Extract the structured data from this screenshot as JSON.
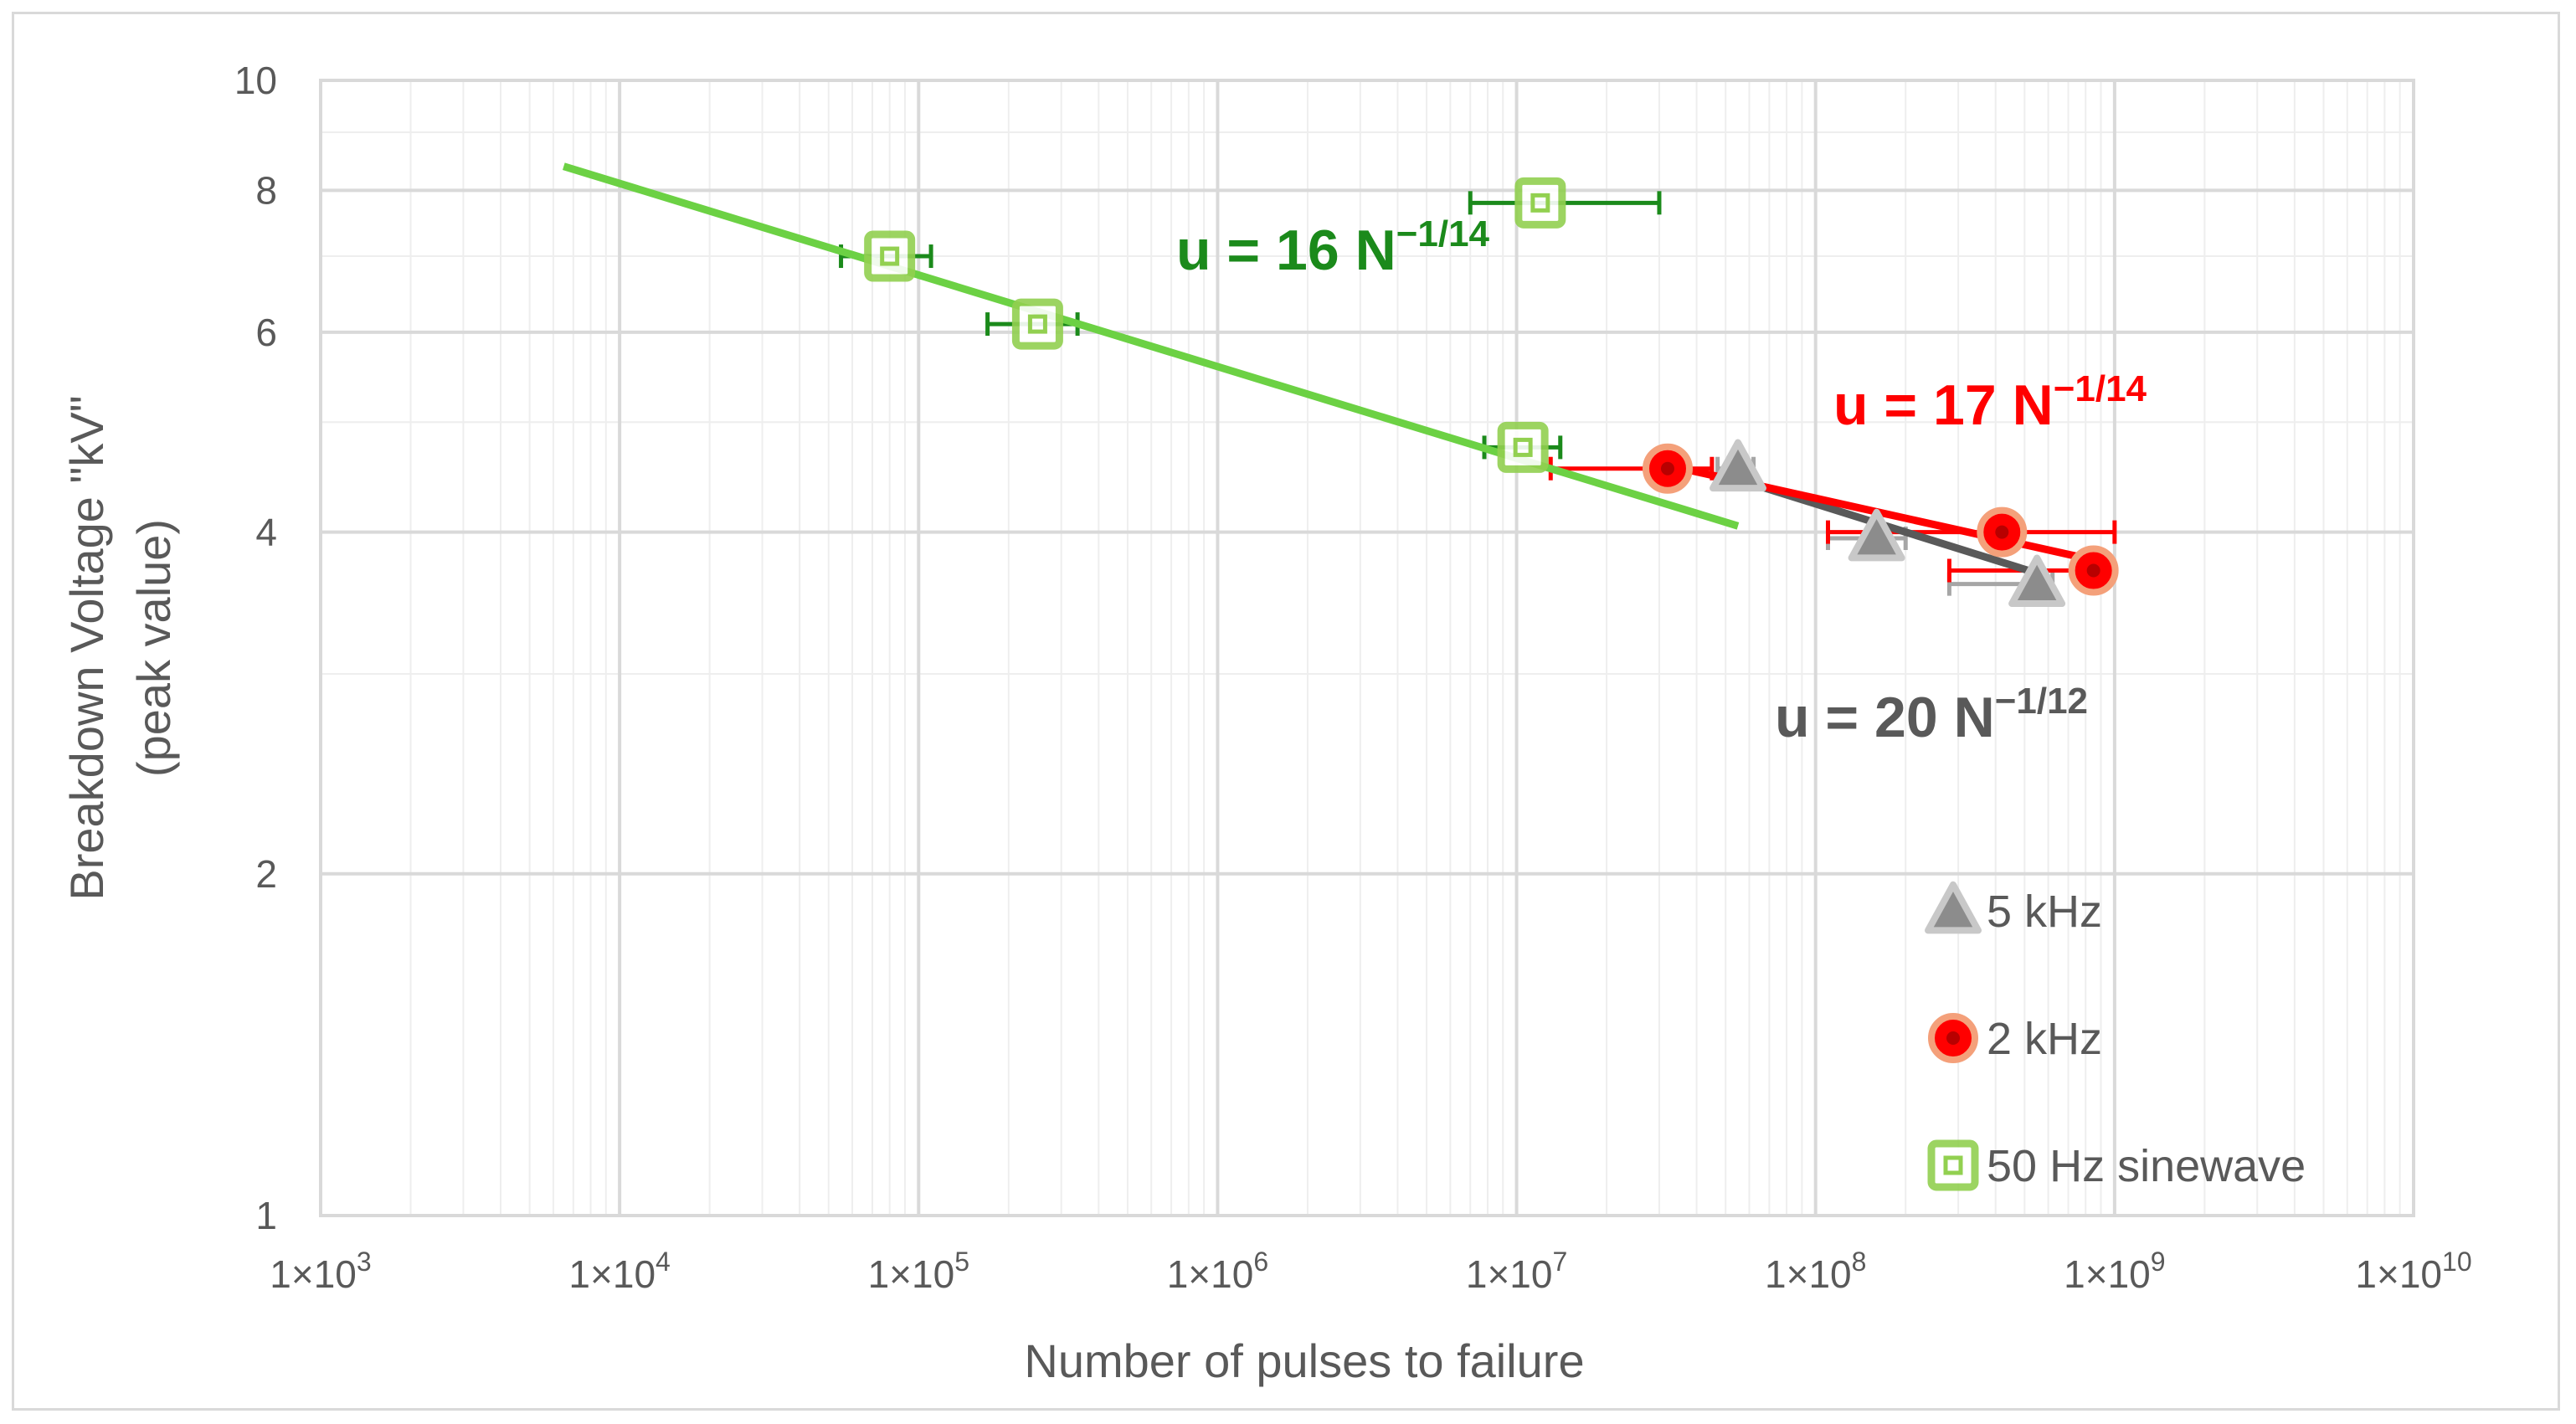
{
  "chart_data": {
    "type": "scatter",
    "title": "",
    "xlabel": "Number of pulses to failure",
    "ylabel": "Breakdown Voltage \"kV\"",
    "ylabel_line2": "(peak value)",
    "x_scale": "log",
    "y_scale": "log",
    "xlim": [
      1000,
      10000000000
    ],
    "ylim": [
      1,
      10
    ],
    "grid": true,
    "legend_position": "bottom-right",
    "x_ticks": [
      {
        "value": 1000,
        "base": "1×10",
        "exp": "3"
      },
      {
        "value": 10000,
        "base": "1×10",
        "exp": "4"
      },
      {
        "value": 100000,
        "base": "1×10",
        "exp": "5"
      },
      {
        "value": 1000000,
        "base": "1×10",
        "exp": "6"
      },
      {
        "value": 10000000,
        "base": "1×10",
        "exp": "7"
      },
      {
        "value": 100000000,
        "base": "1×10",
        "exp": "8"
      },
      {
        "value": 1000000000,
        "base": "1×10",
        "exp": "9"
      },
      {
        "value": 10000000000,
        "base": "1×10",
        "exp": "10"
      }
    ],
    "y_ticks": [
      {
        "value": 1,
        "label": "1"
      },
      {
        "value": 2,
        "label": "2"
      },
      {
        "value": 4,
        "label": "4"
      },
      {
        "value": 6,
        "label": "6"
      },
      {
        "value": 8,
        "label": "8"
      },
      {
        "value": 10,
        "label": "10"
      }
    ],
    "series": [
      {
        "name": "5 kHz",
        "marker": "triangle",
        "color": "#a6a6a6",
        "points": [
          {
            "x": 55000000,
            "y": 4.55,
            "xmin": 47000000,
            "xmax": 62000000
          },
          {
            "x": 160000000,
            "y": 3.95,
            "xmin": 110000000,
            "xmax": 200000000
          },
          {
            "x": 550000000,
            "y": 3.6,
            "xmin": 280000000,
            "xmax": 620000000
          }
        ],
        "fit": {
          "x": [
            55000000,
            550000000
          ],
          "y": [
            4.45,
            3.68
          ],
          "color": "#595959"
        },
        "equation": {
          "prefix": "u = 20 N",
          "exp": "−1/12",
          "color": "#595959"
        }
      },
      {
        "name": "2 kHz",
        "marker": "circle",
        "color": "#ff0000",
        "points": [
          {
            "x": 32000000,
            "y": 4.55,
            "xmin": 13000000,
            "xmax": 45000000
          },
          {
            "x": 420000000,
            "y": 4.0,
            "xmin": 110000000,
            "xmax": 1000000000
          },
          {
            "x": 850000000,
            "y": 3.7,
            "xmin": 280000000,
            "xmax": 870000000
          }
        ],
        "fit": {
          "x": [
            32000000,
            850000000
          ],
          "y": [
            4.58,
            3.78
          ],
          "color": "#ff0000"
        },
        "equation": {
          "prefix": "u = 17 N",
          "exp": "−1/14",
          "color": "#ff0000"
        }
      },
      {
        "name": "50 Hz sinewave",
        "marker": "square",
        "color": "#92d050",
        "points": [
          {
            "x": 12000000,
            "y": 7.8,
            "xmin": 7000000,
            "xmax": 30000000
          },
          {
            "x": 80000,
            "y": 7.0,
            "xmin": 55000,
            "xmax": 110000
          },
          {
            "x": 250000,
            "y": 6.1,
            "xmin": 170000,
            "xmax": 340000
          },
          {
            "x": 10500000,
            "y": 4.75,
            "xmin": 7800000,
            "xmax": 14000000
          }
        ],
        "fit": {
          "x": [
            6500,
            55000000
          ],
          "y": [
            8.4,
            4.05
          ],
          "color": "#6cd144"
        },
        "equation": {
          "prefix": "u = 16 N",
          "exp": "−1/14",
          "color": "#1b8a1b"
        }
      }
    ]
  },
  "colors": {
    "frame": "#d9d9d9",
    "grid_major": "#d9d9d9",
    "grid_minor": "#eeeeee",
    "text": "#595959",
    "errorbar_50hz": "#1b8a1b",
    "errorbar_2khz": "#ff0000",
    "errorbar_5khz": "#a6a6a6"
  }
}
